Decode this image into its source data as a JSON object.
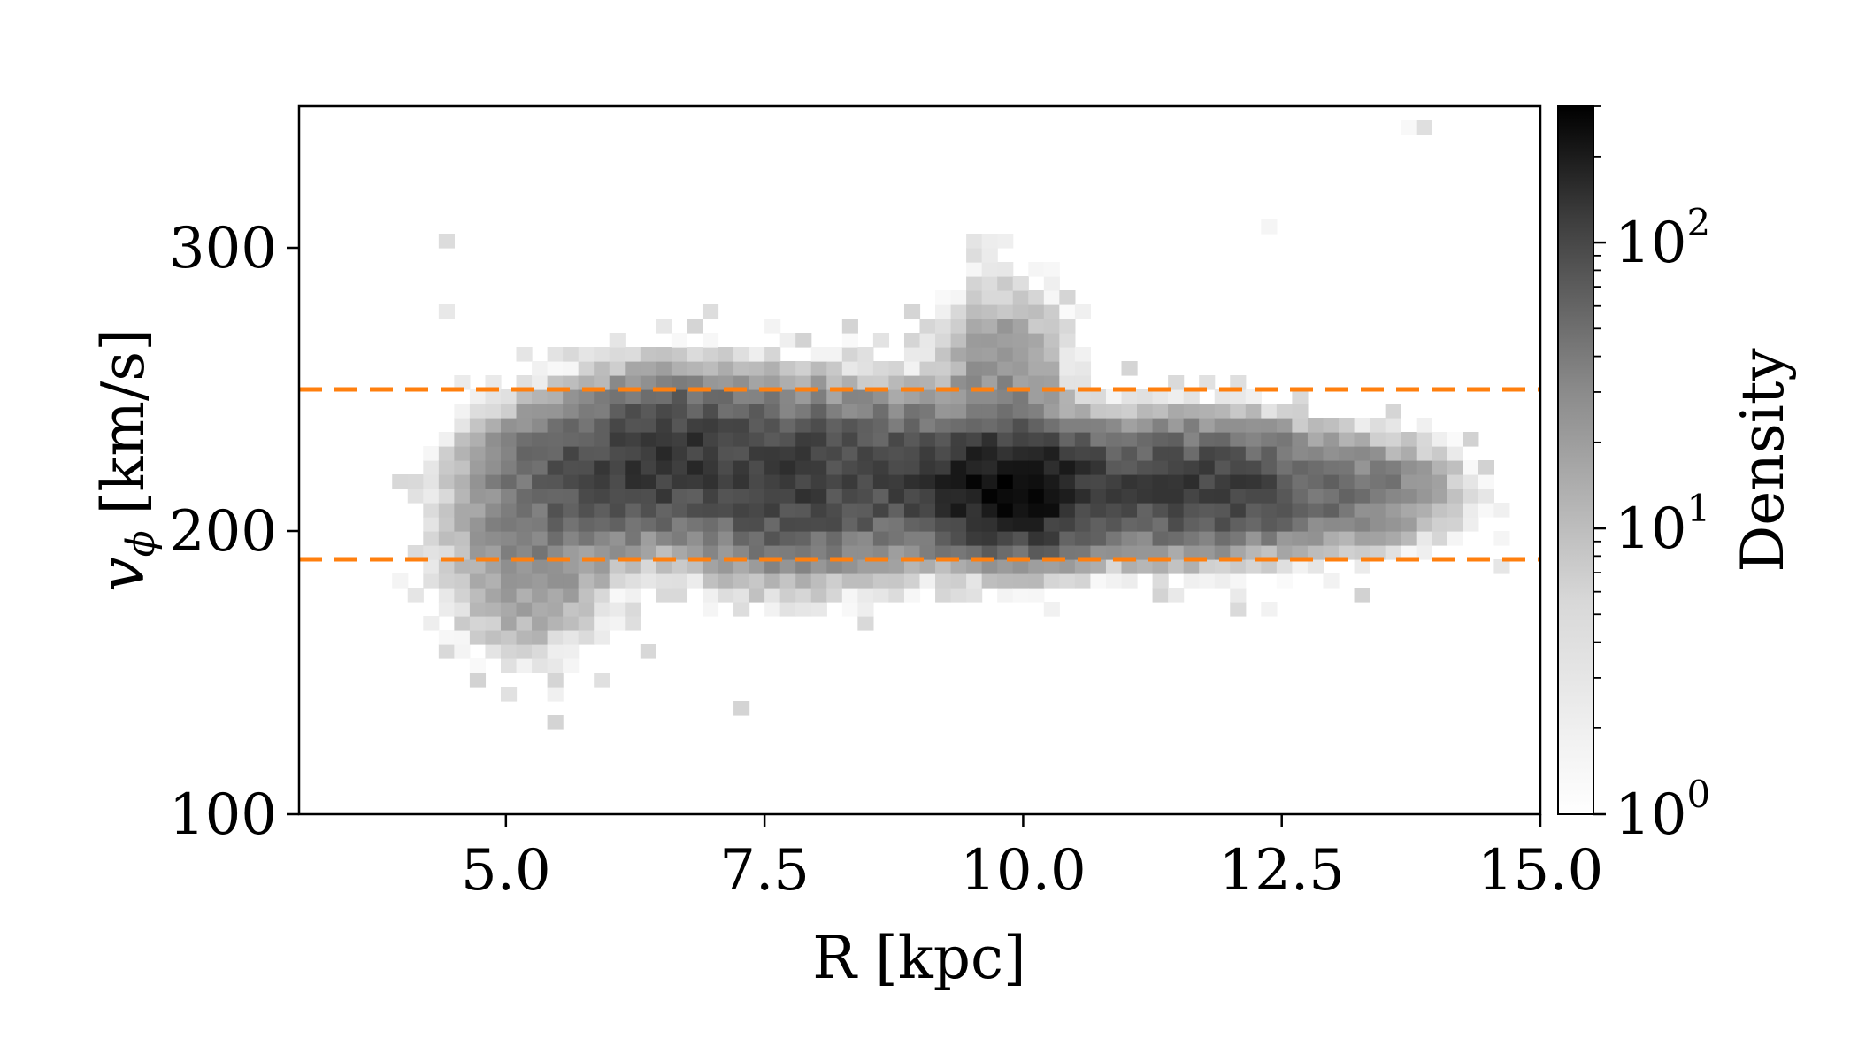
{
  "chart_data": {
    "type": "heatmap",
    "title": "",
    "xlabel": "R [kpc]",
    "ylabel": {
      "symbol": "v",
      "subscript": "ϕ",
      "unit": "[km/s]"
    },
    "xlim": [
      3.0,
      15.0
    ],
    "ylim": [
      100,
      350
    ],
    "x_ticks": [
      5.0,
      7.5,
      10.0,
      12.5,
      15.0
    ],
    "x_tick_labels": [
      "5.0",
      "7.5",
      "10.0",
      "12.5",
      "15.0"
    ],
    "y_ticks": [
      100,
      200,
      300
    ],
    "y_tick_labels": [
      "100",
      "200",
      "300"
    ],
    "grid": false,
    "colormap": "gray_r",
    "colorbar": {
      "label": "Density",
      "scale": "log",
      "range": [
        1,
        300
      ],
      "ticks": [
        {
          "value": 1,
          "base": "10",
          "exp": "0"
        },
        {
          "value": 10,
          "base": "10",
          "exp": "1"
        },
        {
          "value": 100,
          "base": "10",
          "exp": "2"
        }
      ]
    },
    "bins": {
      "x_bin_width": 0.15,
      "y_bin_width": 5
    },
    "density_clusters": [
      {
        "x": 5.8,
        "y": 220,
        "sx": 0.55,
        "sy": 14,
        "peak": 45
      },
      {
        "x": 6.6,
        "y": 228,
        "sx": 0.45,
        "sy": 13,
        "peak": 80
      },
      {
        "x": 7.7,
        "y": 218,
        "sx": 0.55,
        "sy": 16,
        "peak": 70
      },
      {
        "x": 8.8,
        "y": 220,
        "sx": 0.55,
        "sy": 14,
        "peak": 45
      },
      {
        "x": 9.9,
        "y": 215,
        "sx": 0.45,
        "sy": 11,
        "peak": 260
      },
      {
        "x": 9.8,
        "y": 255,
        "sx": 0.35,
        "sy": 18,
        "peak": 12
      },
      {
        "x": 11.2,
        "y": 215,
        "sx": 0.6,
        "sy": 12,
        "peak": 40
      },
      {
        "x": 12.0,
        "y": 216,
        "sx": 0.6,
        "sy": 11,
        "peak": 55
      },
      {
        "x": 13.3,
        "y": 214,
        "sx": 0.5,
        "sy": 10,
        "peak": 18
      },
      {
        "x": 5.2,
        "y": 190,
        "sx": 0.45,
        "sy": 18,
        "peak": 12
      }
    ],
    "reference_lines": [
      {
        "orientation": "horizontal",
        "y": 250,
        "style": "dashed",
        "color": "#ff7f0e"
      },
      {
        "orientation": "horizontal",
        "y": 190,
        "style": "dashed",
        "color": "#ff7f0e"
      }
    ],
    "colors": {
      "line": "#ff7f0e",
      "axis": "#000000",
      "background": "#ffffff"
    }
  }
}
